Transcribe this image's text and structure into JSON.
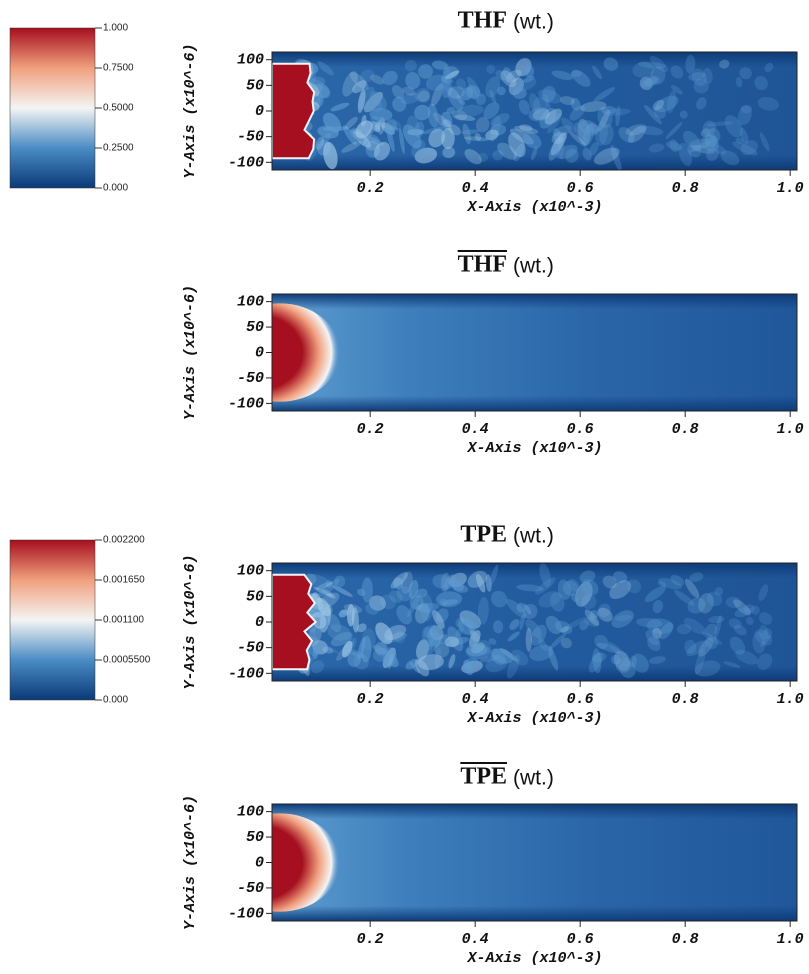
{
  "chart_data": [
    {
      "type": "heatmap",
      "title": "THF",
      "title_note": "(wt.)",
      "overline": false,
      "x_label": "X-Axis (x10^-3)",
      "y_label": "Y-Axis (x10^-6)",
      "xlim": [
        0.013,
        1.013
      ],
      "ylim": [
        -115,
        115
      ],
      "xticks": [
        0.2,
        0.4,
        0.6,
        0.8,
        {
          "value": 1,
          "label": "1.0"
        }
      ],
      "yticks": [
        100,
        50,
        0,
        -50,
        -100
      ],
      "colorbar": {
        "clim": [
          0,
          1
        ],
        "colors": [
          "#0b3a78",
          "#4a8cc4",
          "#f4f4f4",
          "#f0a07e",
          "#a50f1f"
        ],
        "ticks": [
          {
            "value": 1,
            "label": "1.000"
          },
          {
            "value": 0.75,
            "label": "0.7500"
          },
          {
            "value": 0.5,
            "label": "0.5000"
          },
          {
            "value": 0.25,
            "label": "0.2500"
          },
          {
            "value": 0,
            "label": "0.000"
          }
        ]
      }
    },
    {
      "type": "heatmap",
      "title": "THF",
      "title_note": "(wt.)",
      "overline": true,
      "x_label": "X-Axis (x10^-3)",
      "y_label": "Y-Axis (x10^-6)",
      "xlim": [
        0.013,
        1.013
      ],
      "ylim": [
        -115,
        115
      ],
      "xticks": [
        0.2,
        0.4,
        0.6,
        0.8,
        {
          "value": 1,
          "label": "1.0"
        }
      ],
      "yticks": [
        100,
        50,
        0,
        -50,
        -100
      ]
    },
    {
      "type": "heatmap",
      "title": "TPE",
      "title_note": "(wt.)",
      "overline": false,
      "x_label": "X-Axis (x10^-3)",
      "y_label": "Y-Axis (x10^-6)",
      "xlim": [
        0.013,
        1.013
      ],
      "ylim": [
        -115,
        115
      ],
      "xticks": [
        0.2,
        0.4,
        0.6,
        0.8,
        {
          "value": 1,
          "label": "1.0"
        }
      ],
      "yticks": [
        100,
        50,
        0,
        -50,
        -100
      ],
      "colorbar": {
        "clim": [
          0,
          0.0022
        ],
        "colors": [
          "#0b3a78",
          "#4a8cc4",
          "#f4f4f4",
          "#f0a07e",
          "#a50f1f"
        ],
        "ticks": [
          {
            "value": 0.0022,
            "label": "0.002200"
          },
          {
            "value": 0.00165,
            "label": "0.001650"
          },
          {
            "value": 0.0011,
            "label": "0.001100"
          },
          {
            "value": 0.00055,
            "label": "0.0005500"
          },
          {
            "value": 0,
            "label": "0.000"
          }
        ]
      }
    },
    {
      "type": "heatmap",
      "title": "TPE",
      "title_note": "(wt.)",
      "overline": true,
      "x_label": "X-Axis (x10^-3)",
      "y_label": "Y-Axis (x10^-6)",
      "xlim": [
        0.013,
        1.013
      ],
      "ylim": [
        -115,
        115
      ],
      "xticks": [
        0.2,
        0.4,
        0.6,
        0.8,
        {
          "value": 1,
          "label": "1.0"
        }
      ],
      "yticks": [
        100,
        50,
        0,
        -50,
        -100
      ]
    }
  ]
}
